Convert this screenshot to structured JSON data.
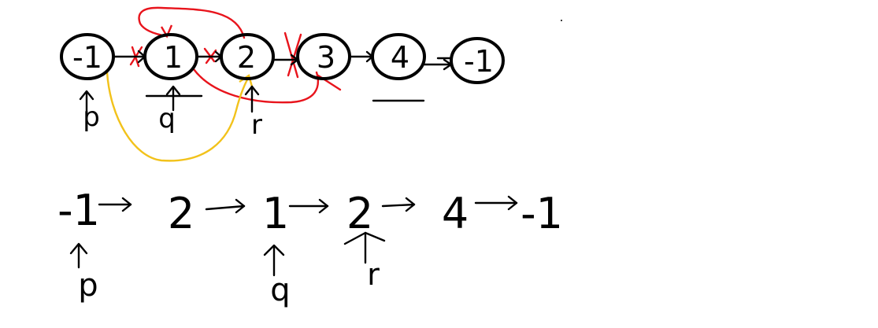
{
  "colors": {
    "ink": "#000000",
    "red": "#e8141c",
    "yellow": "#f2c21b",
    "background": "#ffffff"
  },
  "top_row": {
    "nodes": [
      "-1",
      "1",
      "2",
      "3",
      "4",
      "-1"
    ],
    "pointers": {
      "p": "p",
      "q": "q",
      "r": "r"
    }
  },
  "bottom_row": {
    "values": [
      "-1",
      "2",
      "1",
      "2",
      "4",
      "-1"
    ],
    "pointers": {
      "p": "p",
      "q": "q",
      "r": "r"
    }
  }
}
